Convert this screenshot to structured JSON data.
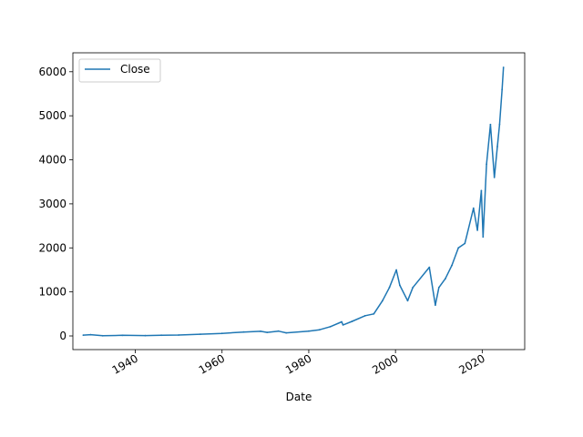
{
  "chart_data": {
    "type": "line",
    "title": "",
    "xlabel": "Date",
    "ylabel": "",
    "xlim": [
      1925.6,
      2029.8
    ],
    "ylim": [
      -310,
      6430
    ],
    "x_ticks": [
      1940,
      1960,
      1980,
      2000,
      2020
    ],
    "y_ticks": [
      0,
      1000,
      2000,
      3000,
      4000,
      5000,
      6000
    ],
    "grid": false,
    "legend": {
      "position": "top-left",
      "entries": [
        "Close"
      ]
    },
    "series": [
      {
        "name": "Close",
        "color": "#1f77b4",
        "x": [
          1928.0,
          1929.7,
          1932.5,
          1937.0,
          1942.3,
          1946.0,
          1950.0,
          1955.0,
          1960.0,
          1965.0,
          1968.9,
          1970.4,
          1973.0,
          1974.8,
          1980.0,
          1982.5,
          1985.0,
          1987.6,
          1987.9,
          1990.0,
          1993.0,
          1995.0,
          1997.0,
          1998.6,
          2000.2,
          2001.0,
          2002.8,
          2004.0,
          2007.8,
          2009.2,
          2010.0,
          2011.5,
          2013.0,
          2014.5,
          2016.0,
          2018.0,
          2018.9,
          2019.8,
          2020.2,
          2021.0,
          2021.9,
          2022.8,
          2023.5,
          2024.0,
          2024.6,
          2024.9
        ],
        "values": [
          18,
          30,
          5,
          15,
          9,
          17,
          20,
          40,
          58,
          88,
          105,
          80,
          110,
          70,
          110,
          140,
          210,
          320,
          250,
          330,
          460,
          500,
          800,
          1100,
          1500,
          1150,
          800,
          1100,
          1560,
          700,
          1100,
          1300,
          1600,
          2000,
          2100,
          2900,
          2400,
          3300,
          2250,
          3900,
          4800,
          3600,
          4300,
          4800,
          5600,
          6100
        ]
      }
    ]
  }
}
